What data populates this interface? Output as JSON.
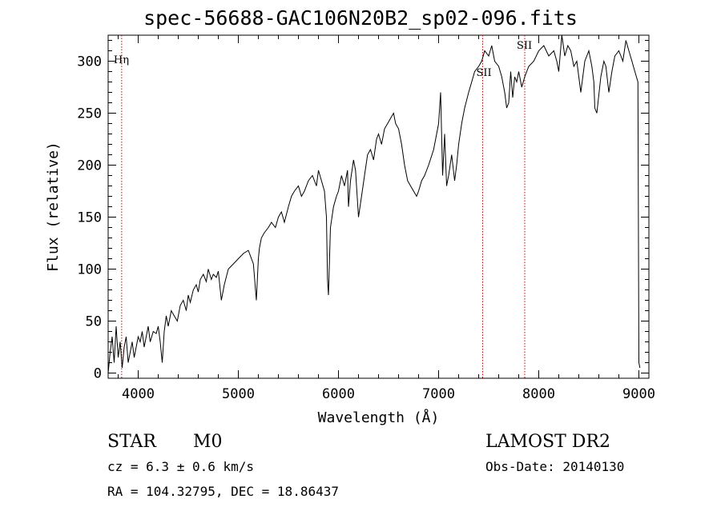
{
  "chart_data": {
    "type": "line",
    "title": "spec-56688-GAC106N20B2_sp02-096.fits",
    "xlabel": "Wavelength (Å)",
    "ylabel": "Flux (relative)",
    "xlim": [
      3700,
      9100
    ],
    "ylim": [
      -5,
      325
    ],
    "xticks": [
      4000,
      5000,
      6000,
      7000,
      8000,
      9000
    ],
    "yticks": [
      0,
      50,
      100,
      150,
      200,
      250,
      300
    ],
    "grid": false,
    "series": [
      {
        "x": [
          3700,
          3720,
          3740,
          3760,
          3780,
          3800,
          3820,
          3840,
          3860,
          3880,
          3900,
          3920,
          3940,
          3960,
          3980,
          4000,
          4020,
          4040,
          4060,
          4080,
          4100,
          4120,
          4150,
          4180,
          4200,
          4220,
          4240,
          4260,
          4280,
          4300,
          4330,
          4360,
          4390,
          4420,
          4450,
          4480,
          4500,
          4520,
          4550,
          4580,
          4600,
          4620,
          4650,
          4680,
          4700,
          4730,
          4750,
          4780,
          4800,
          4830,
          4860,
          4900,
          4950,
          5000,
          5050,
          5100,
          5150,
          5180,
          5200,
          5210,
          5230,
          5260,
          5300,
          5330,
          5370,
          5400,
          5430,
          5460,
          5500,
          5530,
          5560,
          5600,
          5630,
          5660,
          5700,
          5740,
          5780,
          5800,
          5830,
          5860,
          5880,
          5890,
          5900,
          5920,
          5950,
          5980,
          6000,
          6030,
          6060,
          6090,
          6100,
          6120,
          6150,
          6170,
          6200,
          6230,
          6260,
          6290,
          6320,
          6350,
          6380,
          6400,
          6430,
          6460,
          6490,
          6520,
          6550,
          6570,
          6600,
          6630,
          6660,
          6690,
          6720,
          6750,
          6780,
          6800,
          6830,
          6860,
          6900,
          6950,
          7000,
          7020,
          7040,
          7060,
          7080,
          7100,
          7130,
          7160,
          7180,
          7200,
          7230,
          7260,
          7300,
          7330,
          7360,
          7400,
          7430,
          7460,
          7500,
          7530,
          7560,
          7600,
          7630,
          7660,
          7680,
          7700,
          7720,
          7740,
          7760,
          7780,
          7800,
          7830,
          7860,
          7900,
          7950,
          8000,
          8050,
          8100,
          8150,
          8180,
          8200,
          8230,
          8260,
          8290,
          8320,
          8350,
          8380,
          8420,
          8460,
          8500,
          8530,
          8550,
          8560,
          8580,
          8620,
          8650,
          8670,
          8700,
          8730,
          8760,
          8800,
          8840,
          8870,
          8900,
          8930,
          8960,
          8990,
          9000,
          9010
        ],
        "values": [
          0,
          20,
          35,
          10,
          45,
          15,
          30,
          5,
          25,
          35,
          10,
          20,
          30,
          15,
          25,
          35,
          30,
          40,
          25,
          35,
          45,
          30,
          40,
          38,
          45,
          30,
          10,
          40,
          55,
          45,
          60,
          55,
          50,
          65,
          70,
          60,
          75,
          68,
          80,
          85,
          78,
          90,
          95,
          88,
          100,
          90,
          95,
          92,
          98,
          70,
          85,
          100,
          105,
          110,
          115,
          118,
          105,
          70,
          110,
          120,
          130,
          135,
          140,
          145,
          140,
          150,
          155,
          145,
          160,
          170,
          175,
          180,
          170,
          175,
          185,
          190,
          180,
          195,
          185,
          175,
          150,
          90,
          75,
          140,
          160,
          170,
          175,
          190,
          180,
          195,
          160,
          185,
          205,
          195,
          150,
          170,
          190,
          210,
          215,
          205,
          225,
          230,
          220,
          235,
          240,
          245,
          250,
          240,
          235,
          220,
          200,
          185,
          180,
          175,
          170,
          175,
          185,
          190,
          200,
          215,
          240,
          270,
          190,
          230,
          180,
          190,
          210,
          185,
          200,
          220,
          240,
          255,
          270,
          280,
          290,
          295,
          300,
          310,
          305,
          315,
          300,
          295,
          285,
          270,
          255,
          260,
          290,
          265,
          285,
          280,
          290,
          275,
          285,
          295,
          300,
          310,
          315,
          305,
          310,
          300,
          290,
          325,
          305,
          315,
          310,
          295,
          300,
          270,
          300,
          310,
          295,
          280,
          255,
          250,
          285,
          300,
          295,
          270,
          290,
          305,
          310,
          300,
          320,
          310,
          300,
          290,
          280,
          10,
          5
        ]
      }
    ],
    "lines": [
      {
        "label": "Hη",
        "x": 3835
      },
      {
        "label": "SII",
        "x": 7440
      },
      {
        "label": "SII",
        "x": 7860
      }
    ],
    "annotations": {
      "class": "STAR",
      "subclass": "M0",
      "cz": "cz = 6.3 ± 0.6 km/s",
      "radec": "RA = 104.32795, DEC =  18.86437",
      "survey": "LAMOST DR2",
      "obsdate": "Obs-Date: 20140130"
    }
  }
}
